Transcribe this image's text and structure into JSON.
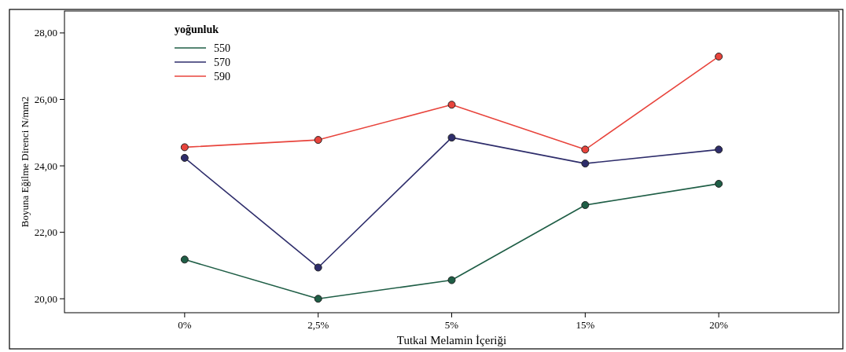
{
  "chart_data": {
    "type": "line",
    "xlabel": "Tutkal Melamin İçeriği",
    "ylabel": "Boyuna Eğilme Direnci N/mm2",
    "legend_title": "yoğunluk",
    "legend": "top left",
    "marker": "circle",
    "line_style": "solid",
    "grid": false,
    "categories": [
      "0%",
      "2,5%",
      "5%",
      "15%",
      "20%"
    ],
    "ylim": [
      19.58,
      28.66
    ],
    "yticks": [
      {
        "value": 20,
        "label": "20,00"
      },
      {
        "value": 22,
        "label": "22,00"
      },
      {
        "value": 24,
        "label": "24,00"
      },
      {
        "value": 26,
        "label": "26,00"
      },
      {
        "value": 28,
        "label": "28,00"
      }
    ],
    "series": [
      {
        "name": "550",
        "color": "#1f5e46",
        "values": [
          21.18,
          20.0,
          20.56,
          22.82,
          23.46
        ]
      },
      {
        "name": "570",
        "color": "#2e2d6b",
        "values": [
          24.24,
          20.94,
          24.85,
          24.07,
          24.49
        ]
      },
      {
        "name": "590",
        "color": "#e8443c",
        "values": [
          24.56,
          24.78,
          25.84,
          24.49,
          27.29
        ]
      }
    ]
  }
}
